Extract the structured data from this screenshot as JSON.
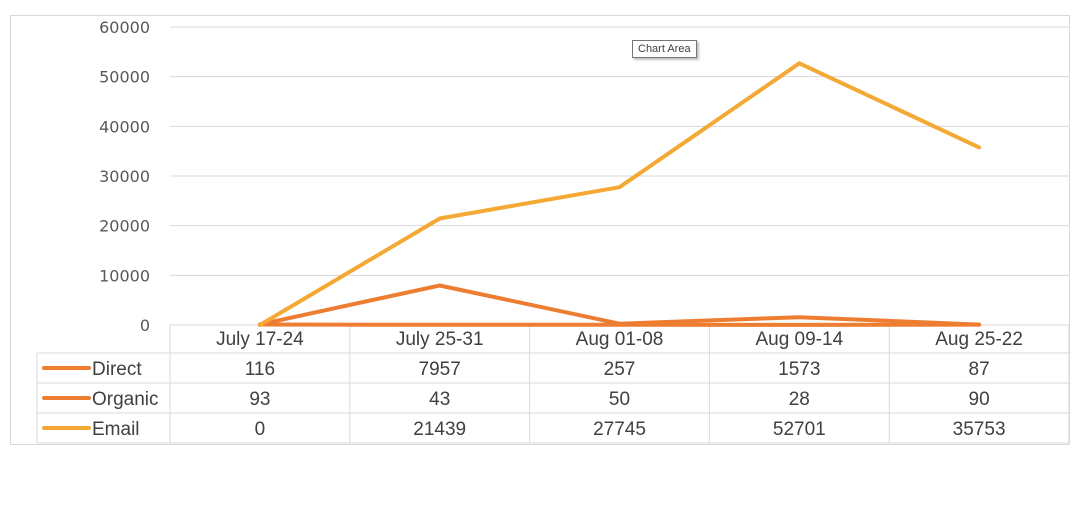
{
  "tooltip": "Chart Area",
  "colors": {
    "Direct": "#ed7d31",
    "Organic": "#ed7d31",
    "Email": "#f4a934",
    "grid": "#d9d9d9"
  },
  "chart_data": {
    "type": "line",
    "categories": [
      "July 17-24",
      "July 25-31",
      "Aug 01-08",
      "Aug 09-14",
      "Aug 25-22"
    ],
    "series": [
      {
        "name": "Direct",
        "values": [
          116,
          7957,
          257,
          1573,
          87
        ]
      },
      {
        "name": "Organic",
        "values": [
          93,
          43,
          50,
          28,
          90
        ]
      },
      {
        "name": "Email",
        "values": [
          0,
          21439,
          27745,
          52701,
          35753
        ]
      }
    ],
    "ylim": [
      0,
      60000
    ],
    "yticks": [
      0,
      10000,
      20000,
      30000,
      40000,
      50000,
      60000
    ],
    "grid": true,
    "legend": "data-table"
  }
}
